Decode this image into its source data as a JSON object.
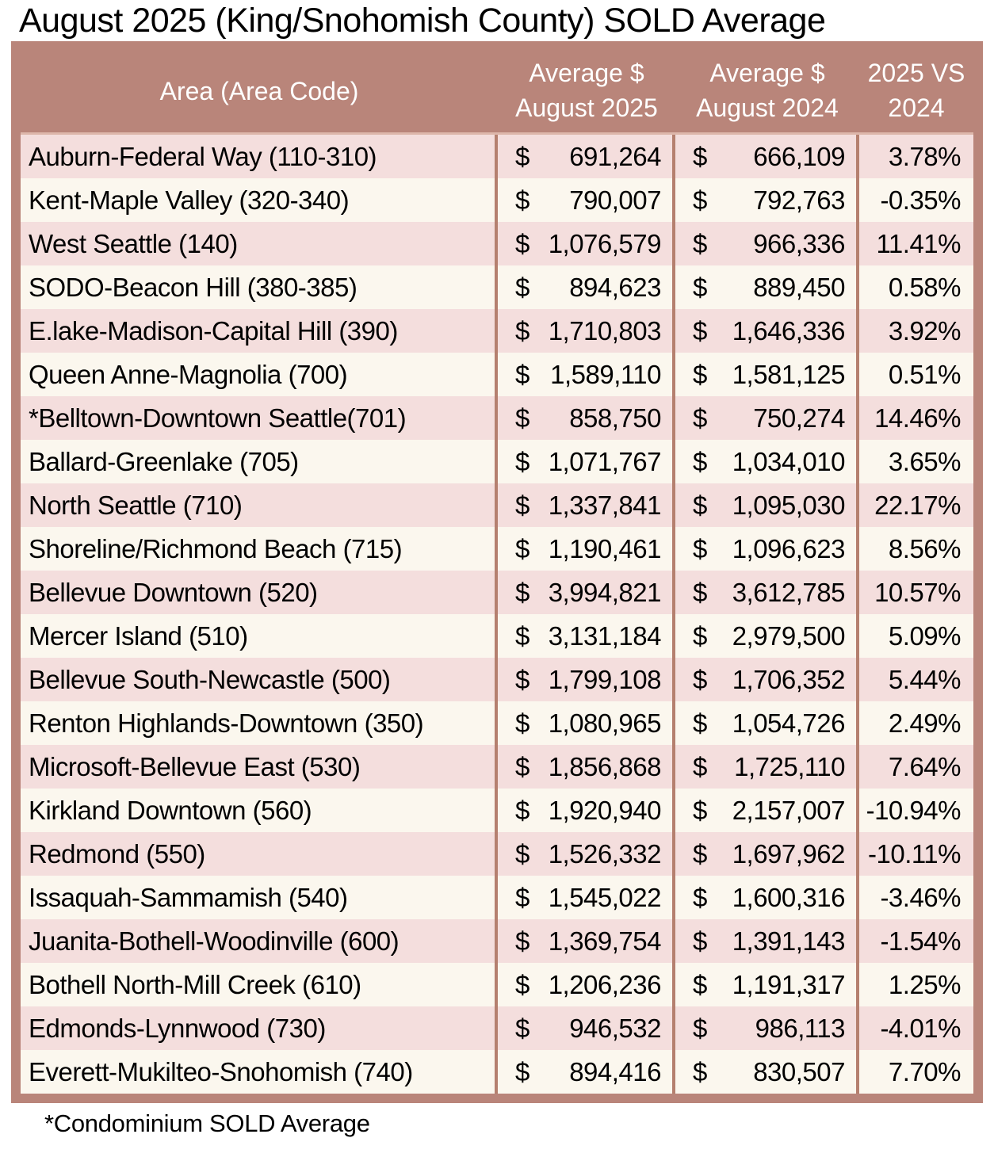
{
  "title": "August 2025 (King/Snohomish County) SOLD Average",
  "footnote": "*Condominium SOLD Average",
  "table": {
    "currency": "$",
    "header": {
      "area": "Area (Area Code)",
      "avg_2025_line1": "Average $",
      "avg_2025_line2": "August 2025",
      "avg_2024_line1": "Average $",
      "avg_2024_line2": "August 2024",
      "change_line1": "2025 VS",
      "change_line2": "2024"
    },
    "rows": [
      {
        "area": "Auburn-Federal Way (110-310)",
        "avg_aug_2025": "691,264",
        "avg_aug_2024": "666,109",
        "change_vs_2024": "3.78%"
      },
      {
        "area": "Kent-Maple Valley (320-340)",
        "avg_aug_2025": "790,007",
        "avg_aug_2024": "792,763",
        "change_vs_2024": "-0.35%"
      },
      {
        "area": "West Seattle (140)",
        "avg_aug_2025": "1,076,579",
        "avg_aug_2024": "966,336",
        "change_vs_2024": "11.41%"
      },
      {
        "area": "SODO-Beacon Hill (380-385)",
        "avg_aug_2025": "894,623",
        "avg_aug_2024": "889,450",
        "change_vs_2024": "0.58%"
      },
      {
        "area": "E.lake-Madison-Capital Hill (390)",
        "avg_aug_2025": "1,710,803",
        "avg_aug_2024": "1,646,336",
        "change_vs_2024": "3.92%"
      },
      {
        "area": "Queen Anne-Magnolia (700)",
        "avg_aug_2025": "1,589,110",
        "avg_aug_2024": "1,581,125",
        "change_vs_2024": "0.51%"
      },
      {
        "area": "*Belltown-Downtown Seattle(701)",
        "avg_aug_2025": "858,750",
        "avg_aug_2024": "750,274",
        "change_vs_2024": "14.46%"
      },
      {
        "area": "Ballard-Greenlake (705)",
        "avg_aug_2025": "1,071,767",
        "avg_aug_2024": "1,034,010",
        "change_vs_2024": "3.65%"
      },
      {
        "area": "North Seattle (710)",
        "avg_aug_2025": "1,337,841",
        "avg_aug_2024": "1,095,030",
        "change_vs_2024": "22.17%"
      },
      {
        "area": "Shoreline/Richmond Beach (715)",
        "avg_aug_2025": "1,190,461",
        "avg_aug_2024": "1,096,623",
        "change_vs_2024": "8.56%"
      },
      {
        "area": "Bellevue Downtown (520)",
        "avg_aug_2025": "3,994,821",
        "avg_aug_2024": "3,612,785",
        "change_vs_2024": "10.57%"
      },
      {
        "area": "Mercer Island (510)",
        "avg_aug_2025": "3,131,184",
        "avg_aug_2024": "2,979,500",
        "change_vs_2024": "5.09%"
      },
      {
        "area": "Bellevue South-Newcastle (500)",
        "avg_aug_2025": "1,799,108",
        "avg_aug_2024": "1,706,352",
        "change_vs_2024": "5.44%"
      },
      {
        "area": "Renton Highlands-Downtown (350)",
        "avg_aug_2025": "1,080,965",
        "avg_aug_2024": "1,054,726",
        "change_vs_2024": "2.49%"
      },
      {
        "area": "Microsoft-Bellevue East (530)",
        "avg_aug_2025": "1,856,868",
        "avg_aug_2024": "1,725,110",
        "change_vs_2024": "7.64%"
      },
      {
        "area": "Kirkland Downtown (560)",
        "avg_aug_2025": "1,920,940",
        "avg_aug_2024": "2,157,007",
        "change_vs_2024": "-10.94%"
      },
      {
        "area": "Redmond (550)",
        "avg_aug_2025": "1,526,332",
        "avg_aug_2024": "1,697,962",
        "change_vs_2024": "-10.11%"
      },
      {
        "area": "Issaquah-Sammamish (540)",
        "avg_aug_2025": "1,545,022",
        "avg_aug_2024": "1,600,316",
        "change_vs_2024": "-3.46%"
      },
      {
        "area": "Juanita-Bothell-Woodinville (600)",
        "avg_aug_2025": "1,369,754",
        "avg_aug_2024": "1,391,143",
        "change_vs_2024": "-1.54%"
      },
      {
        "area": "Bothell North-Mill Creek (610)",
        "avg_aug_2025": "1,206,236",
        "avg_aug_2024": "1,191,317",
        "change_vs_2024": "1.25%"
      },
      {
        "area": "Edmonds-Lynnwood (730)",
        "avg_aug_2025": "946,532",
        "avg_aug_2024": "986,113",
        "change_vs_2024": "-4.01%"
      },
      {
        "area": "Everett-Mukilteo-Snohomish (740)",
        "avg_aug_2025": "894,416",
        "avg_aug_2024": "830,507",
        "change_vs_2024": "7.70%"
      }
    ]
  },
  "colors": {
    "header_bg": "#b9857a",
    "outer_border": "#b9857a",
    "divider": "#b5806f",
    "row_pink": "#f4dedd",
    "row_cream": "#fbf7ee",
    "header_text": "#ffffff",
    "body_text": "#000000"
  },
  "chart_data": {
    "type": "table",
    "title": "August 2025 (King/Snohomish County) SOLD Average",
    "columns": [
      "Area (Area Code)",
      "Average $ August 2025",
      "Average $ August 2024",
      "2025 VS 2024"
    ],
    "footnote": "*Condominium SOLD Average",
    "rows": [
      [
        "Auburn-Federal Way (110-310)",
        691264,
        666109,
        3.78
      ],
      [
        "Kent-Maple Valley (320-340)",
        790007,
        792763,
        -0.35
      ],
      [
        "West Seattle (140)",
        1076579,
        966336,
        11.41
      ],
      [
        "SODO-Beacon Hill (380-385)",
        894623,
        889450,
        0.58
      ],
      [
        "E.lake-Madison-Capital Hill (390)",
        1710803,
        1646336,
        3.92
      ],
      [
        "Queen Anne-Magnolia (700)",
        1589110,
        1581125,
        0.51
      ],
      [
        "*Belltown-Downtown Seattle(701)",
        858750,
        750274,
        14.46
      ],
      [
        "Ballard-Greenlake (705)",
        1071767,
        1034010,
        3.65
      ],
      [
        "North Seattle (710)",
        1337841,
        1095030,
        22.17
      ],
      [
        "Shoreline/Richmond Beach (715)",
        1190461,
        1096623,
        8.56
      ],
      [
        "Bellevue Downtown (520)",
        3994821,
        3612785,
        10.57
      ],
      [
        "Mercer Island (510)",
        3131184,
        2979500,
        5.09
      ],
      [
        "Bellevue South-Newcastle (500)",
        1799108,
        1706352,
        5.44
      ],
      [
        "Renton Highlands-Downtown (350)",
        1080965,
        1054726,
        2.49
      ],
      [
        "Microsoft-Bellevue East (530)",
        1856868,
        1725110,
        7.64
      ],
      [
        "Kirkland Downtown (560)",
        1920940,
        2157007,
        -10.94
      ],
      [
        "Redmond (550)",
        1526332,
        1697962,
        -10.11
      ],
      [
        "Issaquah-Sammamish (540)",
        1545022,
        1600316,
        -3.46
      ],
      [
        "Juanita-Bothell-Woodinville (600)",
        1369754,
        1391143,
        -1.54
      ],
      [
        "Bothell North-Mill Creek (610)",
        1206236,
        1191317,
        1.25
      ],
      [
        "Edmonds-Lynnwood (730)",
        946532,
        986113,
        -4.01
      ],
      [
        "Everett-Mukilteo-Snohomish (740)",
        894416,
        830507,
        7.7
      ]
    ]
  }
}
